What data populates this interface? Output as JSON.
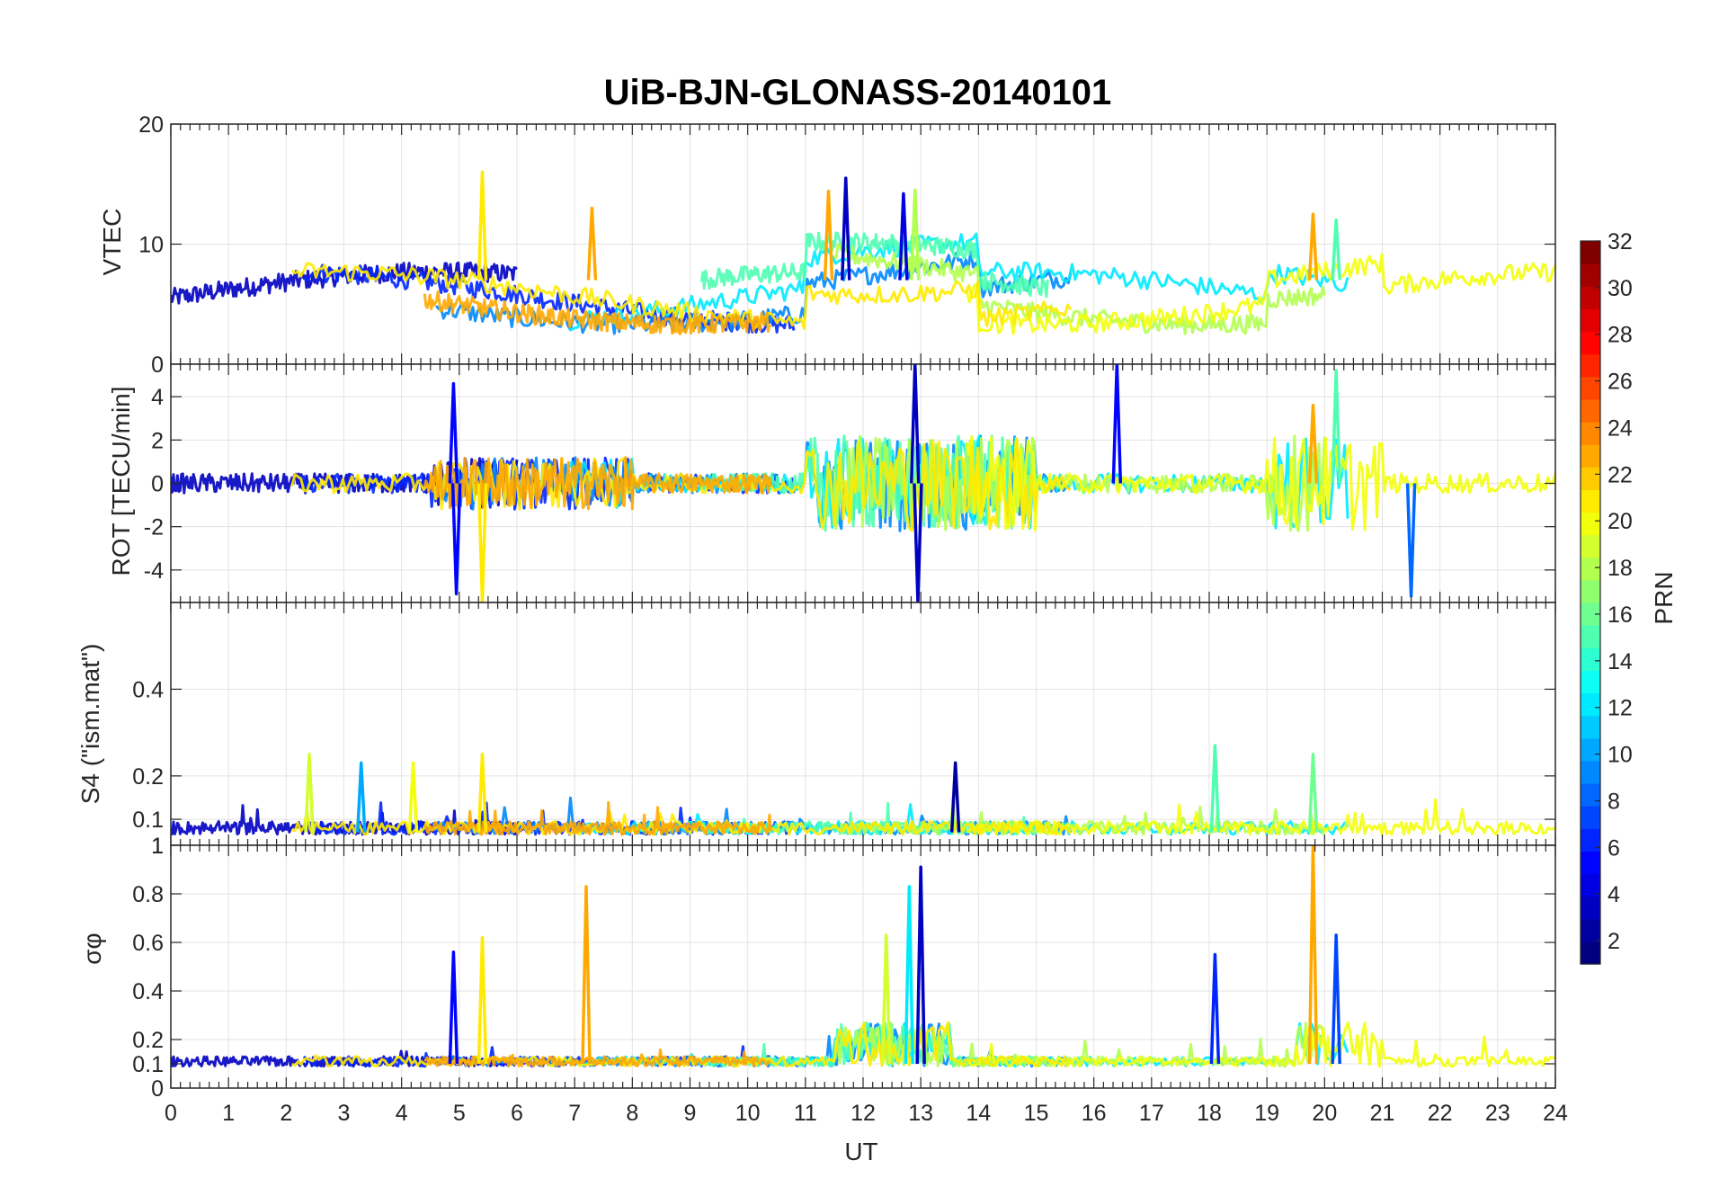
{
  "chart_data": {
    "type": "line",
    "title": "UiB-BJN-GLONASS-20140101",
    "xlabel": "UT",
    "xlim": [
      0,
      24
    ],
    "xticks": [
      "0",
      "1",
      "2",
      "3",
      "4",
      "5",
      "6",
      "7",
      "8",
      "9",
      "10",
      "11",
      "12",
      "13",
      "14",
      "15",
      "16",
      "17",
      "18",
      "19",
      "20",
      "21",
      "22",
      "23",
      "24"
    ],
    "grid": true,
    "panels": [
      {
        "id": "vtec",
        "ylabel": "VTEC",
        "ylim": [
          0,
          20
        ],
        "yticks": [
          {
            "v": 0,
            "t": "0"
          },
          {
            "v": 10,
            "t": "10"
          },
          {
            "v": 20,
            "t": "20"
          }
        ],
        "events": [
          {
            "t": 5.4,
            "v": 16,
            "prn": 21
          },
          {
            "t": 7.3,
            "v": 13,
            "prn": 23
          },
          {
            "t": 11.4,
            "v": 14.4,
            "prn": 23
          },
          {
            "t": 11.7,
            "v": 15.5,
            "prn": 3
          },
          {
            "t": 12.7,
            "v": 14.2,
            "prn": 4
          },
          {
            "t": 12.9,
            "v": 14.5,
            "prn": 18
          },
          {
            "t": 19.8,
            "v": 12.5,
            "prn": 23
          },
          {
            "t": 20.2,
            "v": 12,
            "prn": 15
          }
        ]
      },
      {
        "id": "rot",
        "ylabel": "ROT [TECU/min]",
        "ylim": [
          -5.5,
          5.5
        ],
        "yticks": [
          {
            "v": -4,
            "t": "-4"
          },
          {
            "v": -2,
            "t": "-2"
          },
          {
            "v": 0,
            "t": "0"
          },
          {
            "v": 2,
            "t": "2"
          },
          {
            "v": 4,
            "t": "4"
          }
        ],
        "events": [
          {
            "t": 4.9,
            "v": 4.6,
            "prn": 5
          },
          {
            "t": 4.95,
            "v": -5.1,
            "prn": 5
          },
          {
            "t": 5.4,
            "v": -5.5,
            "prn": 21
          },
          {
            "t": 12.9,
            "v": 5.5,
            "prn": 3
          },
          {
            "t": 12.95,
            "v": -5.5,
            "prn": 3
          },
          {
            "t": 16.4,
            "v": 5.5,
            "prn": 5
          },
          {
            "t": 20.2,
            "v": 5.2,
            "prn": 15
          },
          {
            "t": 21.5,
            "v": -5.2,
            "prn": 8
          },
          {
            "t": 19.8,
            "v": 3.6,
            "prn": 23
          }
        ]
      },
      {
        "id": "s4",
        "ylabel": "S4 (\"ism.mat\")",
        "ylim": [
          0.04,
          0.6
        ],
        "yticks": [
          {
            "v": 0.1,
            "t": "0.1"
          },
          {
            "v": 0.2,
            "t": "0.2"
          },
          {
            "v": 0.4,
            "t": "0.4"
          }
        ],
        "extra_tick": "1",
        "events": [
          {
            "t": 2.4,
            "v": 0.25,
            "prn": 19
          },
          {
            "t": 3.3,
            "v": 0.23,
            "prn": 10
          },
          {
            "t": 4.2,
            "v": 0.23,
            "prn": 20
          },
          {
            "t": 5.4,
            "v": 0.25,
            "prn": 21
          },
          {
            "t": 13.6,
            "v": 0.23,
            "prn": 2
          },
          {
            "t": 18.1,
            "v": 0.27,
            "prn": 15
          },
          {
            "t": 19.8,
            "v": 0.25,
            "prn": 16
          }
        ]
      },
      {
        "id": "sigma_phi",
        "ylabel": "σφ",
        "ylim": [
          0,
          1
        ],
        "yticks": [
          {
            "v": 0,
            "t": "0"
          },
          {
            "v": 0.1,
            "t": "0.1"
          },
          {
            "v": 0.2,
            "t": "0.2"
          },
          {
            "v": 0.4,
            "t": "0.4"
          },
          {
            "v": 0.6,
            "t": "0.6"
          },
          {
            "v": 0.8,
            "t": "0.8"
          },
          {
            "v": 1,
            "t": "1"
          }
        ],
        "events": [
          {
            "t": 4.9,
            "v": 0.56,
            "prn": 5
          },
          {
            "t": 5.4,
            "v": 0.62,
            "prn": 21
          },
          {
            "t": 7.2,
            "v": 0.83,
            "prn": 23
          },
          {
            "t": 12.8,
            "v": 0.83,
            "prn": 12
          },
          {
            "t": 13.0,
            "v": 0.91,
            "prn": 3
          },
          {
            "t": 12.4,
            "v": 0.63,
            "prn": 19
          },
          {
            "t": 18.1,
            "v": 0.55,
            "prn": 6
          },
          {
            "t": 19.8,
            "v": 1.0,
            "prn": 23
          },
          {
            "t": 20.2,
            "v": 0.63,
            "prn": 7
          }
        ]
      }
    ],
    "colorbar": {
      "label": "PRN",
      "range": [
        1,
        32
      ],
      "ticks": [
        "2",
        "4",
        "6",
        "8",
        "10",
        "12",
        "14",
        "16",
        "18",
        "20",
        "22",
        "24",
        "26",
        "28",
        "30",
        "32"
      ],
      "colormap": "jet"
    }
  },
  "colors": {
    "prn_3": "#00008f",
    "prn_6": "#0010ff",
    "prn_9": "#0070ff",
    "prn_12": "#00cfff",
    "prn_15": "#30ffcf",
    "prn_18": "#a0ff60",
    "prn_20": "#f0ff10",
    "prn_21": "#ffcf00",
    "prn_23": "#ff7f00"
  }
}
